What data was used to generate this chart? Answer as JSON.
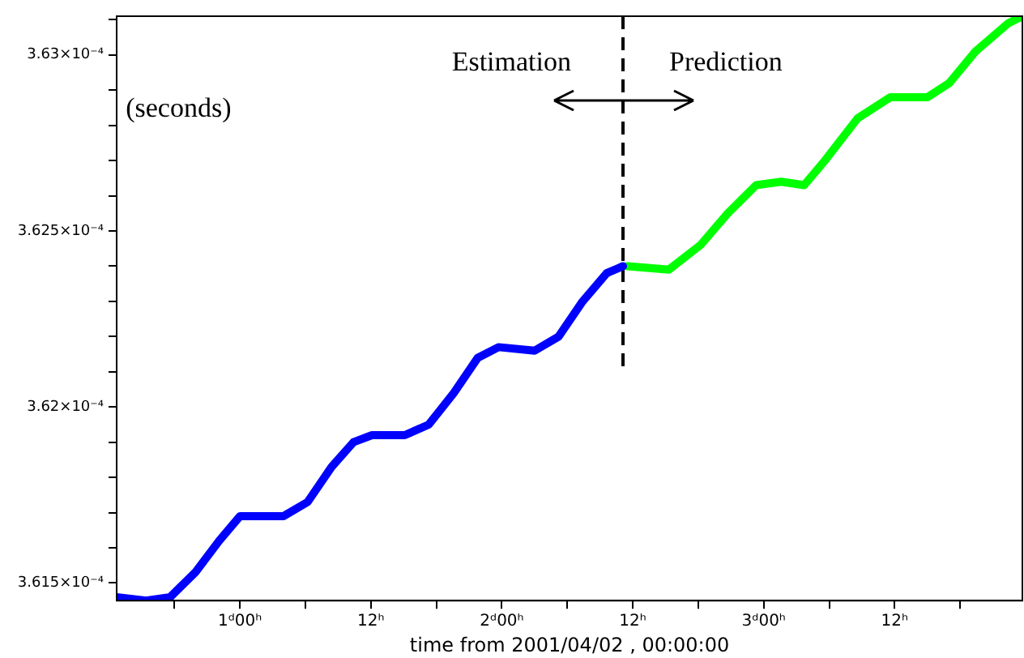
{
  "chart_data": {
    "type": "line",
    "xlabel": "time from 2001/04/02 , 00:00:00",
    "annotations": [
      "(seconds)",
      "Estimation",
      "Prediction"
    ],
    "xlim": [
      "2001-04-02T12:42",
      "2001-04-05T23:42"
    ],
    "xticks": [
      {
        "value": "2001-04-02T18:00",
        "label": null
      },
      {
        "value": "2001-04-03T00:00",
        "label": "1ᵈ00ʰ"
      },
      {
        "value": "2001-04-03T06:00",
        "label": null
      },
      {
        "value": "2001-04-03T12:00",
        "label": "12ʰ"
      },
      {
        "value": "2001-04-03T18:00",
        "label": null
      },
      {
        "value": "2001-04-04T00:00",
        "label": "2ᵈ00ʰ"
      },
      {
        "value": "2001-04-04T06:00",
        "label": null
      },
      {
        "value": "2001-04-04T12:00",
        "label": "12ʰ"
      },
      {
        "value": "2001-04-04T18:00",
        "label": null
      },
      {
        "value": "2001-04-05T00:00",
        "label": "3ᵈ00ʰ"
      },
      {
        "value": "2001-04-05T06:00",
        "label": null
      },
      {
        "value": "2001-04-05T12:00",
        "label": "12ʰ"
      },
      {
        "value": "2001-04-05T18:00",
        "label": null
      }
    ],
    "ylim": [
      0.00036145,
      0.00036311
    ],
    "yticks": [
      {
        "value": 0.0003615,
        "label": "3.615×10⁻⁴"
      },
      {
        "value": 0.0003616,
        "label": null
      },
      {
        "value": 0.0003617,
        "label": null
      },
      {
        "value": 0.0003618,
        "label": null
      },
      {
        "value": 0.0003619,
        "label": null
      },
      {
        "value": 0.000362,
        "label": "3.62×10⁻⁴"
      },
      {
        "value": 0.0003621,
        "label": null
      },
      {
        "value": 0.0003622,
        "label": null
      },
      {
        "value": 0.0003623,
        "label": null
      },
      {
        "value": 0.0003624,
        "label": null
      },
      {
        "value": 0.0003625,
        "label": "3.625×10⁻⁴"
      },
      {
        "value": 0.0003626,
        "label": null
      },
      {
        "value": 0.0003627,
        "label": null
      },
      {
        "value": 0.0003628,
        "label": null
      },
      {
        "value": 0.0003629,
        "label": null
      },
      {
        "value": 0.000363,
        "label": "3.63×10⁻⁴"
      },
      {
        "value": 0.0003631,
        "label": null
      }
    ],
    "grid": false,
    "legend": false,
    "marker": "none",
    "line_style": "solid",
    "ref_lines": [
      {
        "axis": "x",
        "value": "2001-04-04T11:06",
        "color": "#000000",
        "line_style": "dashed"
      }
    ],
    "series": [
      {
        "color": "#0000ff",
        "x": [
          "2001-04-02T12:42",
          "2001-04-02T15:24",
          "2001-04-02T17:36",
          "2001-04-02T19:54",
          "2001-04-02T22:06",
          "2001-04-03T00:00",
          "2001-04-03T01:48",
          "2001-04-03T04:00",
          "2001-04-03T06:12",
          "2001-04-03T08:24",
          "2001-04-03T10:24",
          "2001-04-03T12:06",
          "2001-04-03T15:06",
          "2001-04-03T17:18",
          "2001-04-03T19:36",
          "2001-04-03T21:48",
          "2001-04-03T23:42",
          "2001-04-04T03:00",
          "2001-04-04T05:12",
          "2001-04-04T07:24",
          "2001-04-04T09:36",
          "2001-04-04T11:06"
        ],
        "values": [
          0.00036146,
          0.00036145,
          0.00036146,
          0.00036153,
          0.00036162,
          0.00036169,
          0.00036169,
          0.00036169,
          0.00036173,
          0.00036183,
          0.0003619,
          0.00036192,
          0.00036192,
          0.00036195,
          0.00036204,
          0.00036214,
          0.00036217,
          0.00036216,
          0.0003622,
          0.0003623,
          0.00036238,
          0.0003624
        ]
      },
      {
        "color": "#00ff00",
        "x": [
          "2001-04-04T11:30",
          "2001-04-04T15:18",
          "2001-04-04T18:12",
          "2001-04-04T20:42",
          "2001-04-04T23:18",
          "2001-04-05T01:36",
          "2001-04-05T03:42",
          "2001-04-05T05:36",
          "2001-04-05T08:36",
          "2001-04-05T11:36",
          "2001-04-05T15:00",
          "2001-04-05T17:00",
          "2001-04-05T19:24",
          "2001-04-05T22:24",
          "2001-04-05T23:42"
        ],
        "values": [
          0.0003624,
          0.00036239,
          0.00036246,
          0.00036255,
          0.00036263,
          0.00036264,
          0.00036263,
          0.0003627,
          0.00036282,
          0.00036288,
          0.00036288,
          0.00036292,
          0.00036301,
          0.00036309,
          0.00036311
        ]
      }
    ]
  }
}
